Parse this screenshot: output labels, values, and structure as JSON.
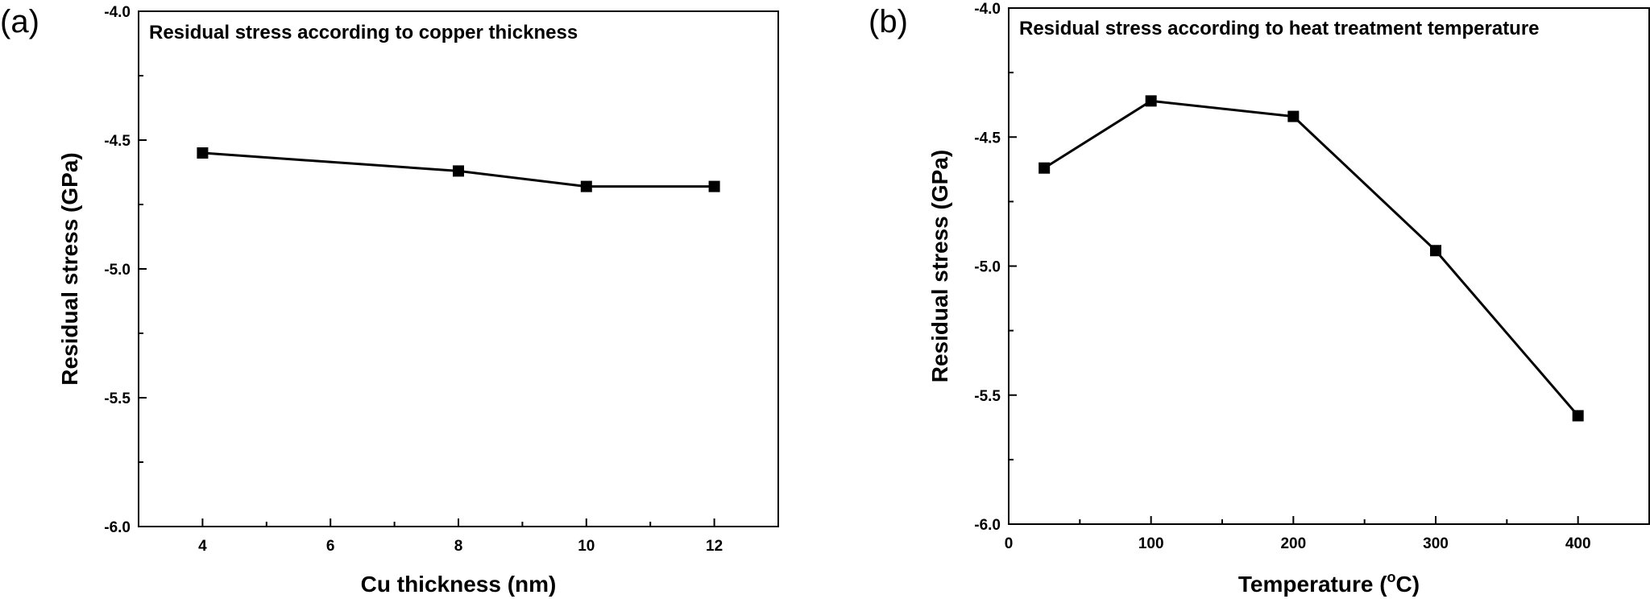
{
  "chart_data": [
    {
      "panel_label": "(a)",
      "type": "line",
      "title": "Residual stress according to copper thickness",
      "xlabel": "Cu thickness (nm)",
      "ylabel": "Residual stress (GPa)",
      "xlim": [
        3,
        13
      ],
      "ylim": [
        -6.0,
        -4.0
      ],
      "xticks": [
        4,
        6,
        8,
        10,
        12
      ],
      "xtick_labels": [
        "4",
        "6",
        "8",
        "10",
        "12"
      ],
      "yticks": [
        -6.0,
        -5.5,
        -5.0,
        -4.5,
        -4.0
      ],
      "ytick_labels": [
        "-6.0",
        "-5.5",
        "-5.0",
        "-4.5",
        "-4.0"
      ],
      "grid": false,
      "marker": "square",
      "series": [
        {
          "x": [
            4,
            8,
            10,
            12
          ],
          "y": [
            -4.55,
            -4.62,
            -4.68,
            -4.68
          ]
        }
      ]
    },
    {
      "panel_label": "(b)",
      "type": "line",
      "title": "Residual stress according to heat treatment temperature",
      "xlabel": "Temperature (",
      "xlabel_sup": "o",
      "xlabel_tail": "C)",
      "ylabel": "Residual stress (GPa)",
      "xlim": [
        0,
        450
      ],
      "ylim": [
        -6.0,
        -4.0
      ],
      "xticks": [
        0,
        100,
        200,
        300,
        400
      ],
      "xtick_labels": [
        "0",
        "100",
        "200",
        "300",
        "400"
      ],
      "yticks": [
        -6.0,
        -5.5,
        -5.0,
        -4.5,
        -4.0
      ],
      "ytick_labels": [
        "-6.0",
        "-5.5",
        "-5.0",
        "-4.5",
        "-4.0"
      ],
      "grid": false,
      "marker": "square",
      "series": [
        {
          "x": [
            25,
            100,
            200,
            300,
            400
          ],
          "y": [
            -4.62,
            -4.36,
            -4.42,
            -4.94,
            -5.58
          ]
        }
      ]
    }
  ]
}
